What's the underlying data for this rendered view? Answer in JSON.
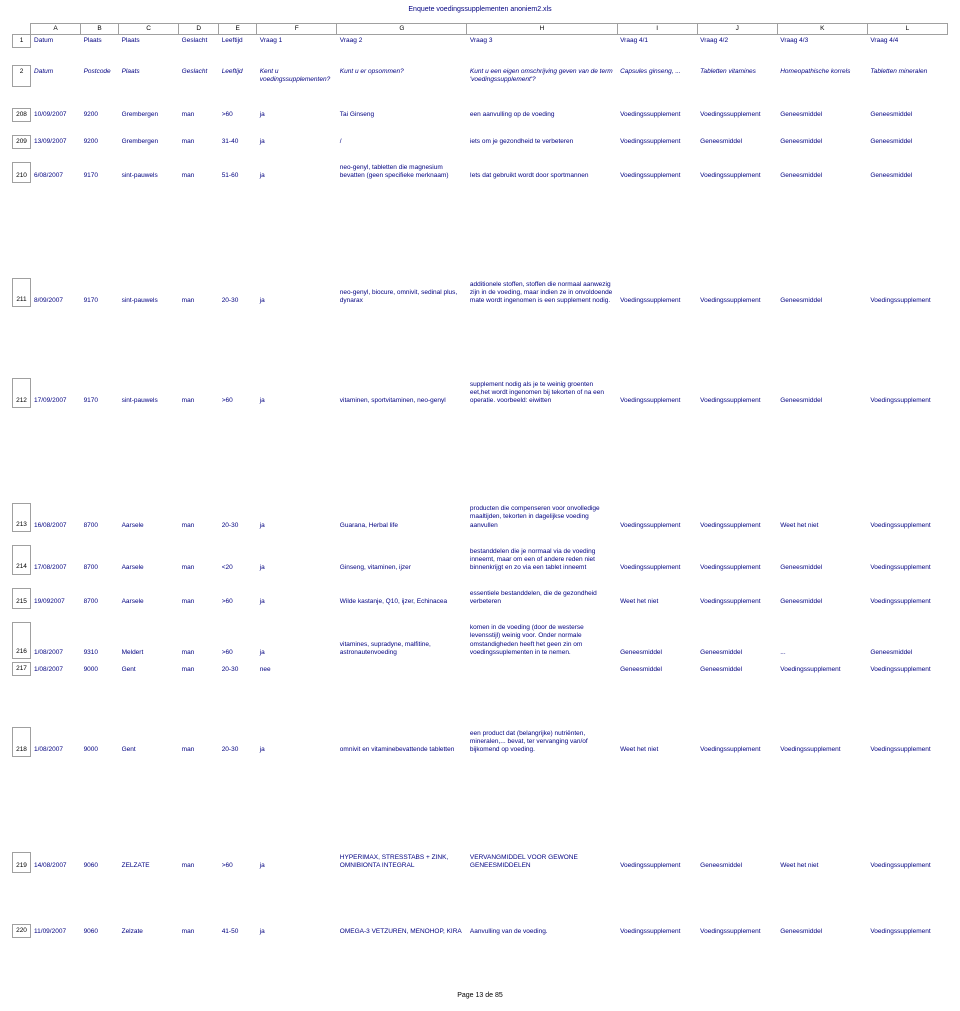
{
  "doc_title": "Enquete voedingssupplementen anoniem2.xls",
  "footer": "Page 13 de 85",
  "column_letters": [
    "A",
    "B",
    "C",
    "D",
    "E",
    "F",
    "G",
    "H",
    "I",
    "J",
    "K",
    "L"
  ],
  "header1": {
    "datum": "Datum",
    "plaats_b": "Plaats",
    "plaats_c": "Plaats",
    "geslacht": "Geslacht",
    "leeftijd": "Leeftijd",
    "v1": "Vraag 1",
    "v2": "Vraag 2",
    "v3": "Vraag 3",
    "v41": "Vraag 4/1",
    "v42": "Vraag 4/2",
    "v43": "Vraag 4/3",
    "v44": "Vraag 4/4"
  },
  "header2": {
    "datum": "Datum",
    "postcode": "Postcode",
    "plaats": "Plaats",
    "geslacht": "Geslacht",
    "leeftijd": "Leeftijd",
    "f": "Kent u voedingssupplementen?",
    "g": "Kunt u er opsommen?",
    "h": "Kunt u een eigen omschrijving geven van de term 'voedingssupplement'?",
    "i": "Capsules ginseng, ...",
    "j": "Tabletten vitamines",
    "k": "Homeopathische korrels",
    "l": "Tabletten mineralen"
  },
  "rows": [
    {
      "n": "208",
      "a": "10/09/2007",
      "b": "9200",
      "c": "Grembergen",
      "d": "man",
      "e": ">60",
      "f": "ja",
      "g": "Tai Ginseng",
      "h": "een aanvulling op de voeding",
      "i": "Voedingssupplement",
      "j": "Voedingssupplement",
      "k": "Geneesmiddel",
      "l": "Geneesmiddel",
      "gap": "gap-small"
    },
    {
      "n": "209",
      "a": "13/09/2007",
      "b": "9200",
      "c": "Grembergen",
      "d": "man",
      "e": "31-40",
      "f": "ja",
      "g": "/",
      "h": "iets om je gezondheid te verbeteren",
      "i": "Voedingssupplement",
      "j": "Geneesmiddel",
      "k": "Geneesmiddel",
      "l": "Geneesmiddel",
      "gap": "gap-small"
    },
    {
      "n": "210",
      "a": "6/08/2007",
      "b": "9170",
      "c": "sint-pauwels",
      "d": "man",
      "e": "51-60",
      "f": "ja",
      "g": "neo-genyl, tabletten die magnesium bevatten (geen specifieke merknaam)",
      "h": "Iets dat gebruikt wordt door sportmannen",
      "i": "Voedingssupplement",
      "j": "Voedingssupplement",
      "k": "Geneesmiddel",
      "l": "Geneesmiddel",
      "gap": "gap-xlarge"
    },
    {
      "n": "211",
      "a": "8/09/2007",
      "b": "9170",
      "c": "sint-pauwels",
      "d": "man",
      "e": "20-30",
      "f": "ja",
      "g": "neo-genyl, biocure, omnivit, sedinal plus, dynarax",
      "h": "additionele stoffen, stoffen die normaal aanwezig zijn in de voeding, maar indien ze in onvoldoende mate wordt ingenomen is een supplement nodig.",
      "i": "Voedingssupplement",
      "j": "Voedingssupplement",
      "k": "Geneesmiddel",
      "l": "Voedingssupplement",
      "gap": "gap-large"
    },
    {
      "n": "212",
      "a": "17/09/2007",
      "b": "9170",
      "c": "sint-pauwels",
      "d": "man",
      "e": ">60",
      "f": "ja",
      "g": "vitaminen, sportvitaminen, neo-genyl",
      "h": "supplement nodig als je te weinig groenten eet,het wordt ingenomen bij tekorten of na een operatie. voorbeeld: eiwitten",
      "i": "Voedingssupplement",
      "j": "Voedingssupplement",
      "k": "Geneesmiddel",
      "l": "Voedingssupplement",
      "gap": "gap-xlarge"
    },
    {
      "n": "213",
      "a": "16/08/2007",
      "b": "8700",
      "c": "Aarsele",
      "d": "man",
      "e": "20-30",
      "f": "ja",
      "g": "Guarana, Herbal life",
      "h": "producten die compenseren voor onvolledige maaltijden, tekorten in dagelijkse voeding aanvullen",
      "i": "Voedingssupplement",
      "j": "Voedingssupplement",
      "k": "Weet het niet",
      "l": "Voedingssupplement",
      "gap": "gap-small"
    },
    {
      "n": "214",
      "a": "17/08/2007",
      "b": "8700",
      "c": "Aarsele",
      "d": "man",
      "e": "<20",
      "f": "ja",
      "g": "Ginseng, vitaminen, ijzer",
      "h": "bestanddelen die je normaal via de voeding inneemt, maar om een of andere reden niet binnenkrijgt en zo via een tablet inneemt",
      "i": "Voedingssupplement",
      "j": "Voedingssupplement",
      "k": "Geneesmiddel",
      "l": "Voedingssupplement",
      "gap": "gap-small"
    },
    {
      "n": "215",
      "a": "19/092007",
      "b": "8700",
      "c": "Aarsele",
      "d": "man",
      "e": ">60",
      "f": "ja",
      "g": "Wilde kastanje, Q10, ijzer, Echinacea",
      "h": "essentiele bestanddelen, die de gezondheid verbeteren",
      "i": "Weet het niet",
      "j": "Voedingssupplement",
      "k": "Geneesmiddel",
      "l": "Voedingssupplement",
      "gap": "gap-small"
    },
    {
      "n": "216",
      "a": "1/08/2007",
      "b": "9310",
      "c": "Meldert",
      "d": "man",
      "e": ">60",
      "f": "ja",
      "g": "vitamines, supradyne, malfitine, astronautenvoeding",
      "h": "komen in de voeding (door de westerse levensstijl) weinig voor. Onder normale omstandigheden heeft het geen zin om voedingssuplementen in te nemen.",
      "i": "Geneesmiddel",
      "j": "Geneesmiddel",
      "k": "...",
      "l": "Geneesmiddel",
      "gap": ""
    },
    {
      "n": "217",
      "a": "1/08/2007",
      "b": "9000",
      "c": "Gent",
      "d": "man",
      "e": "20-30",
      "f": "nee",
      "g": "",
      "h": "",
      "i": "Geneesmiddel",
      "j": "Geneesmiddel",
      "k": "Voedingssupplement",
      "l": "Voedingssupplement",
      "gap": "gap-med"
    },
    {
      "n": "218",
      "a": "1/08/2007",
      "b": "9000",
      "c": "Gent",
      "d": "man",
      "e": "20-30",
      "f": "ja",
      "g": "omnivit en vitaminebevattende tabletten",
      "h": "een product dat (belangrijke) nutriënten, mineralen,... bevat, ter vervanging van/of bijkomend op voeding.",
      "i": "Weet het niet",
      "j": "Voedingssupplement",
      "k": "Voedingssupplement",
      "l": "Voedingssupplement",
      "gap": "gap-xlarge"
    },
    {
      "n": "219",
      "a": "14/08/2007",
      "b": "9060",
      "c": "ZELZATE",
      "d": "man",
      "e": ">60",
      "f": "ja",
      "g": "HYPERIMAX, STRESSTABS + ZINK, OMNIBIONTA INTEGRAL",
      "h": "VERVANGMIDDEL VOOR GEWONE GENEESMIDDELEN",
      "i": "Voedingssupplement",
      "j": "Geneesmiddel",
      "k": "Weet het niet",
      "l": "Voedingssupplement",
      "gap": "gap-med"
    },
    {
      "n": "220",
      "a": "11/09/2007",
      "b": "9060",
      "c": "Zelzate",
      "d": "man",
      "e": "41-50",
      "f": "ja",
      "g": "OMEGA-3 VETZUREN, MENOHOP, KIRA",
      "h": "Aanvulling van de voeding.",
      "i": "Voedingssupplement",
      "j": "Voedingssupplement",
      "k": "Geneesmiddel",
      "l": "Voedingssupplement",
      "gap": "gap-small"
    }
  ]
}
